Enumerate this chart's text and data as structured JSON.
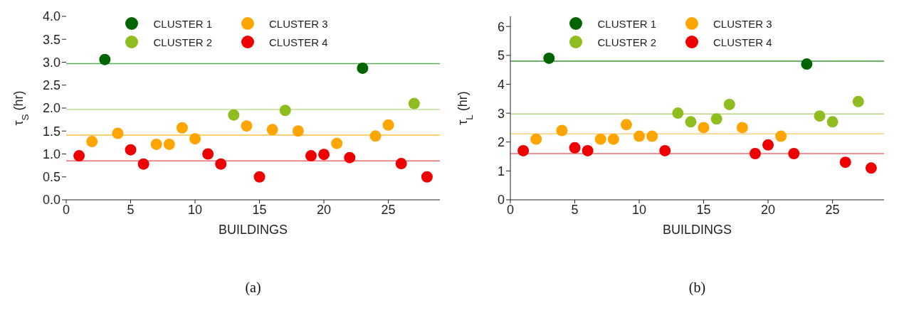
{
  "chart_data": [
    {
      "type": "scatter",
      "xlabel": "BUILDINGS",
      "ylabel": "τ$_{S}$ (hr)",
      "xlim": [
        0,
        29
      ],
      "xticks": [
        0,
        5,
        10,
        15,
        20,
        25
      ],
      "ylim": [
        0,
        4
      ],
      "yticks": [
        {
          "value": 0,
          "label": "0.0"
        },
        0.5,
        {
          "value": 1,
          "label": "1.0"
        },
        1.5,
        {
          "value": 2,
          "label": "2.0"
        },
        2.5,
        {
          "value": 3,
          "label": "3.0"
        },
        3.5,
        {
          "value": 4,
          "label": "4.0"
        }
      ],
      "grid": false,
      "legend": "top",
      "marker": "circle",
      "annotations": [
        "(a)"
      ],
      "series": [
        {
          "name": "CLUSTER 1",
          "color": "#006400",
          "x": [
            3,
            23
          ],
          "values": [
            3.06,
            2.87
          ]
        },
        {
          "name": "CLUSTER 2",
          "color": "#8fbc1f",
          "x": [
            13,
            17,
            27
          ],
          "values": [
            1.85,
            1.95,
            2.1
          ]
        },
        {
          "name": "CLUSTER 3",
          "color": "#ffa500",
          "x": [
            2,
            4,
            7,
            8,
            9,
            10,
            14,
            16,
            18,
            21,
            24,
            25
          ],
          "values": [
            1.27,
            1.45,
            1.21,
            1.21,
            1.57,
            1.33,
            1.61,
            1.53,
            1.5,
            1.23,
            1.39,
            1.63
          ]
        },
        {
          "name": "CLUSTER 4",
          "color": "#ee0000",
          "x": [
            1,
            5,
            6,
            11,
            12,
            15,
            19,
            20,
            22,
            26,
            28
          ],
          "values": [
            0.96,
            1.09,
            0.78,
            1.0,
            0.78,
            0.5,
            0.96,
            0.99,
            0.92,
            0.79,
            0.5
          ]
        }
      ],
      "ref_lines": [
        {
          "axis": "y",
          "value": 2.97,
          "color": "#5aae5a"
        },
        {
          "axis": "y",
          "value": 1.97,
          "color": "#c2df96"
        },
        {
          "axis": "y",
          "value": 1.41,
          "color": "#ffbf40"
        },
        {
          "axis": "y",
          "value": 0.85,
          "color": "#f56b6b"
        }
      ]
    },
    {
      "type": "scatter",
      "xlabel": "BUILDINGS",
      "ylabel": "τ$_{L}$ (hr)",
      "xlim": [
        0,
        29
      ],
      "xticks": [
        0,
        5,
        10,
        15,
        20,
        25
      ],
      "ylim": [
        0,
        6.35
      ],
      "yticks": [
        0,
        1,
        2,
        3,
        4,
        5,
        6
      ],
      "grid": false,
      "legend": "top",
      "marker": "circle",
      "annotations": [
        "(b)"
      ],
      "series": [
        {
          "name": "CLUSTER 1",
          "color": "#006400",
          "x": [
            3,
            23
          ],
          "values": [
            4.9,
            4.7
          ]
        },
        {
          "name": "CLUSTER 2",
          "color": "#8fbc1f",
          "x": [
            13,
            14,
            16,
            17,
            24,
            25,
            27
          ],
          "values": [
            3.0,
            2.7,
            2.8,
            3.3,
            2.9,
            2.7,
            3.4
          ]
        },
        {
          "name": "CLUSTER 3",
          "color": "#ffa500",
          "x": [
            2,
            4,
            7,
            8,
            9,
            10,
            11,
            15,
            18,
            21
          ],
          "values": [
            2.1,
            2.4,
            2.1,
            2.1,
            2.6,
            2.2,
            2.2,
            2.5,
            2.5,
            2.2
          ]
        },
        {
          "name": "CLUSTER 4",
          "color": "#ee0000",
          "x": [
            1,
            5,
            6,
            12,
            19,
            20,
            22,
            26,
            28
          ],
          "values": [
            1.7,
            1.8,
            1.7,
            1.7,
            1.6,
            1.9,
            1.6,
            1.3,
            1.1
          ]
        }
      ],
      "ref_lines": [
        {
          "axis": "y",
          "value": 4.8,
          "color": "#3a9a3a"
        },
        {
          "axis": "y",
          "value": 2.97,
          "color": "#b5d67f"
        },
        {
          "axis": "y",
          "value": 2.28,
          "color": "#ffd080"
        },
        {
          "axis": "y",
          "value": 1.6,
          "color": "#f56b6b"
        }
      ]
    }
  ]
}
